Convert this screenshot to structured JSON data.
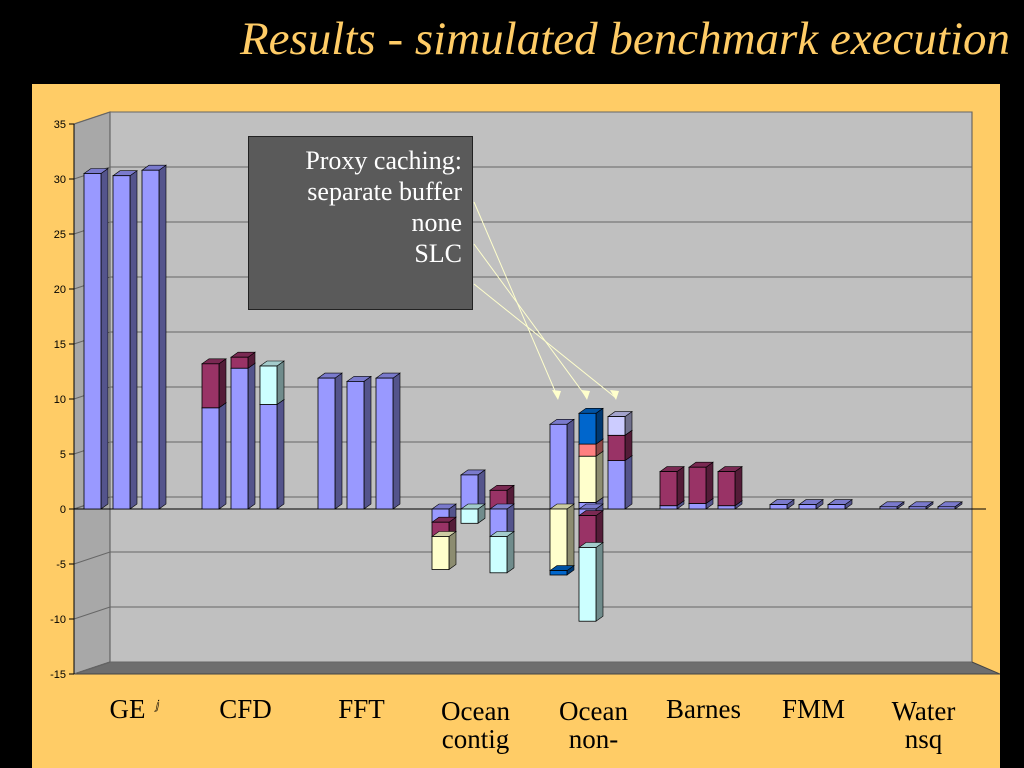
{
  "slide": {
    "title": "Results - simulated benchmark execution"
  },
  "callout": {
    "lines": [
      "Proxy caching:",
      "separate buffer",
      "none",
      "SLC"
    ]
  },
  "colors": {
    "background": "#000000",
    "title": "#ffcc66",
    "panel": "#ffcc66",
    "wall": "#c0c0c0",
    "floor": "#6e6e6e",
    "callout_bg": "#5a5a5a",
    "arrow": "#ffffcc"
  },
  "chart_data": {
    "type": "bar",
    "style": "3d-clustered-stacked",
    "ylim": [
      -15,
      35
    ],
    "yticks": [
      35,
      30,
      25,
      20,
      15,
      10,
      5,
      0,
      -5,
      -10,
      -15
    ],
    "grid": true,
    "categories": [
      {
        "label": "GE",
        "sublabel": "ⅉ",
        "label_lines": [
          "GE"
        ],
        "groups": [
          [
            {
              "v": 30.5,
              "c": "#9999ff"
            }
          ],
          [
            {
              "v": 30.3,
              "c": "#9999ff"
            }
          ],
          [
            {
              "v": 30.8,
              "c": "#9999ff"
            }
          ]
        ]
      },
      {
        "label": "CFD",
        "label_lines": [
          "CFD"
        ],
        "groups": [
          [
            {
              "v": 9.2,
              "c": "#9999ff"
            },
            {
              "v": 4.0,
              "c": "#993366"
            }
          ],
          [
            {
              "v": 12.8,
              "c": "#9999ff"
            },
            {
              "v": 1.0,
              "c": "#993366"
            }
          ],
          [
            {
              "v": 9.5,
              "c": "#9999ff"
            },
            {
              "v": 3.5,
              "c": "#ccffff"
            }
          ]
        ]
      },
      {
        "label": "FFT",
        "label_lines": [
          "FFT"
        ],
        "groups": [
          [
            {
              "v": 11.9,
              "c": "#9999ff"
            }
          ],
          [
            {
              "v": 11.6,
              "c": "#9999ff"
            }
          ],
          [
            {
              "v": 11.9,
              "c": "#9999ff"
            }
          ]
        ]
      },
      {
        "label": "Ocean contig",
        "label_lines": [
          "Ocean",
          "contig"
        ],
        "groups": [
          [
            {
              "v": -1.2,
              "c": "#9999ff"
            },
            {
              "v": -1.3,
              "c": "#993366"
            },
            {
              "v": -3.0,
              "c": "#ffffcc"
            }
          ],
          [
            {
              "v": 3.1,
              "c": "#9999ff"
            },
            {
              "v": -1.3,
              "c": "#ccffff"
            }
          ],
          [
            {
              "v": 1.7,
              "c": "#993366"
            },
            {
              "v": -2.5,
              "c": "#9999ff"
            },
            {
              "v": -3.3,
              "c": "#ccffff"
            }
          ]
        ]
      },
      {
        "label": "Ocean non-",
        "label_lines": [
          "Ocean",
          "non-"
        ],
        "groups": [
          [
            {
              "v": 7.7,
              "c": "#9999ff"
            },
            {
              "v": -5.6,
              "c": "#ffffcc"
            },
            {
              "v": -0.4,
              "c": "#0066cc"
            }
          ],
          [
            {
              "v": 0.6,
              "c": "#9999ff"
            },
            {
              "v": 4.2,
              "c": "#ffffcc"
            },
            {
              "v": 1.1,
              "c": "#ff8080"
            },
            {
              "v": 2.8,
              "c": "#0066cc"
            },
            {
              "v": -0.6,
              "c": "#9999ff"
            },
            {
              "v": -2.9,
              "c": "#993366"
            },
            {
              "v": -6.7,
              "c": "#ccffff"
            }
          ],
          [
            {
              "v": 4.4,
              "c": "#9999ff"
            },
            {
              "v": 2.3,
              "c": "#993366"
            },
            {
              "v": 1.7,
              "c": "#ccccff"
            }
          ]
        ]
      },
      {
        "label": "Barnes",
        "label_lines": [
          "Barnes"
        ],
        "groups": [
          [
            {
              "v": 0.3,
              "c": "#9999ff"
            },
            {
              "v": 3.1,
              "c": "#993366"
            }
          ],
          [
            {
              "v": 0.5,
              "c": "#9999ff"
            },
            {
              "v": 3.3,
              "c": "#993366"
            }
          ],
          [
            {
              "v": 0.3,
              "c": "#9999ff"
            },
            {
              "v": 3.1,
              "c": "#993366"
            }
          ]
        ]
      },
      {
        "label": "FMM",
        "label_lines": [
          "FMM"
        ],
        "groups": [
          [
            {
              "v": 0.4,
              "c": "#9999ff"
            }
          ],
          [
            {
              "v": 0.4,
              "c": "#9999ff"
            }
          ],
          [
            {
              "v": 0.4,
              "c": "#9999ff"
            }
          ]
        ]
      },
      {
        "label": "Water nsq",
        "label_lines": [
          "Water",
          "nsq"
        ],
        "groups": [
          [
            {
              "v": 0.2,
              "c": "#9999ff"
            }
          ],
          [
            {
              "v": 0.2,
              "c": "#9999ff"
            }
          ],
          [
            {
              "v": 0.2,
              "c": "#9999ff"
            }
          ]
        ]
      }
    ]
  }
}
